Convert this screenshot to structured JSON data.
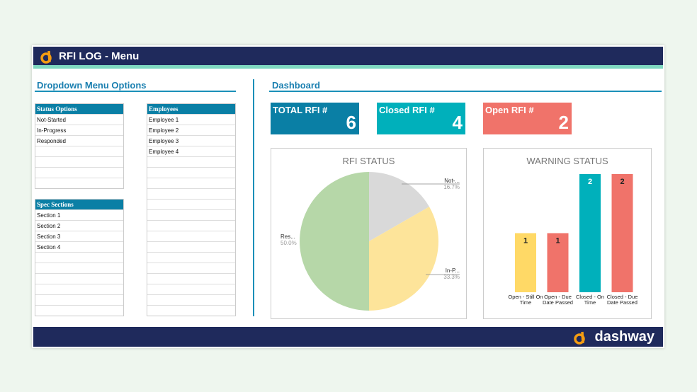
{
  "header": {
    "title": "RFI LOG - Menu"
  },
  "dropdown": {
    "title": "Dropdown Menu Options",
    "status": {
      "header": "Status Options",
      "items": [
        "Not-Started",
        "In-Progress",
        "Responded",
        "",
        "",
        "",
        ""
      ]
    },
    "spec": {
      "header": "Spec Sections",
      "items": [
        "Section 1",
        "Section 2",
        "Section 3",
        "Section 4",
        "",
        "",
        "",
        "",
        "",
        ""
      ]
    },
    "employees": {
      "header": "Employees",
      "items": [
        "Employee 1",
        "Employee 2",
        "Employee 3",
        "Employee 4",
        "",
        "",
        "",
        "",
        "",
        "",
        "",
        "",
        "",
        "",
        "",
        "",
        "",
        "",
        ""
      ]
    }
  },
  "dashboard": {
    "title": "Dashboard",
    "kpis": [
      {
        "label": "TOTAL RFI #",
        "value": "6",
        "color": "#0a7fa5"
      },
      {
        "label": "Closed RFI #",
        "value": "4",
        "color": "#00b0bb"
      },
      {
        "label": "Open RFI #",
        "value": "2",
        "color": "#f0736a"
      }
    ]
  },
  "chart_data": [
    {
      "type": "pie",
      "title": "RFI STATUS",
      "slices": [
        {
          "label": "Not-...",
          "value": 16.7,
          "pct": "16.7%",
          "color": "#d9d9d9"
        },
        {
          "label": "In-P...",
          "value": 33.3,
          "pct": "33.3%",
          "color": "#fde49a"
        },
        {
          "label": "Res...",
          "value": 50.0,
          "pct": "50.0%",
          "color": "#b6d7a8"
        }
      ]
    },
    {
      "type": "bar",
      "title": "WARNING STATUS",
      "categories": [
        "Open  - Still On Time",
        "Open - Due Date Passed",
        "Closed - On Time",
        "Closed - Due Date Passed"
      ],
      "values": [
        1,
        1,
        2,
        2
      ],
      "colors": [
        "#ffd966",
        "#f0736a",
        "#00b0bb",
        "#f0736a"
      ],
      "ylim": [
        0,
        2
      ]
    }
  ],
  "footer": {
    "brand": "dashway"
  }
}
